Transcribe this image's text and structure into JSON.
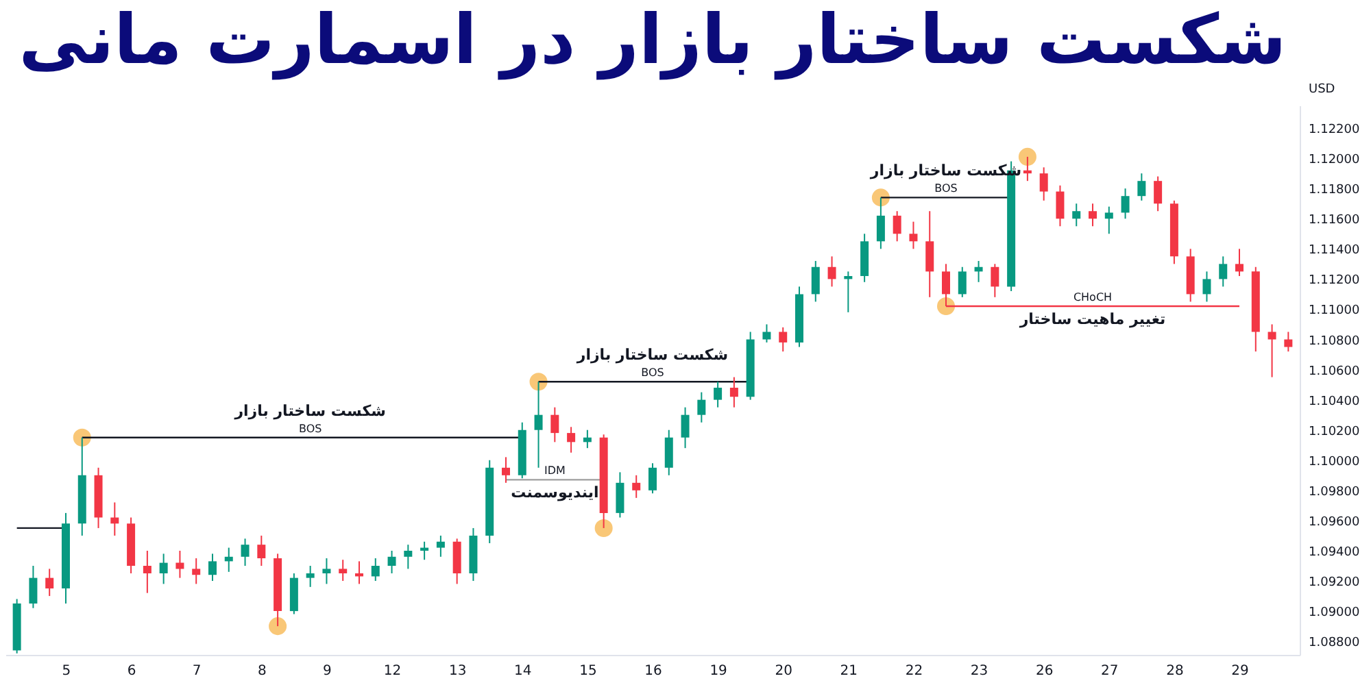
{
  "chart_data": {
    "type": "candlestick",
    "title": "شکست ساختار بازار در اسمارت مانی",
    "ylabel": "USD",
    "categories": [
      null,
      null,
      null,
      "5",
      null,
      null,
      null,
      "6",
      null,
      null,
      null,
      "7",
      null,
      null,
      null,
      "8",
      null,
      null,
      null,
      "9",
      null,
      null,
      null,
      "12",
      null,
      null,
      null,
      "13",
      null,
      null,
      null,
      "14",
      null,
      null,
      null,
      "15",
      null,
      null,
      null,
      "16",
      null,
      null,
      null,
      "19",
      null,
      null,
      null,
      "20",
      null,
      null,
      null,
      "21",
      null,
      null,
      null,
      "22",
      null,
      null,
      null,
      "23",
      null,
      null,
      null,
      "26",
      null,
      null,
      null,
      "27",
      null,
      null,
      null,
      "28",
      null,
      null,
      null,
      "29",
      null,
      null,
      null
    ],
    "ohlc": [
      [
        1.0874,
        1.0908,
        1.0872,
        1.0905
      ],
      [
        1.0905,
        1.093,
        1.0902,
        1.0922
      ],
      [
        1.0922,
        1.0928,
        1.091,
        1.0915
      ],
      [
        1.0915,
        1.0965,
        1.0905,
        1.0958
      ],
      [
        1.0958,
        1.1015,
        1.095,
        1.099
      ],
      [
        1.099,
        1.0995,
        1.0955,
        1.0962
      ],
      [
        1.0962,
        1.0972,
        1.095,
        1.0958
      ],
      [
        1.0958,
        1.0962,
        1.0925,
        1.093
      ],
      [
        1.093,
        1.094,
        1.0912,
        1.0925
      ],
      [
        1.0925,
        1.0938,
        1.0918,
        1.0932
      ],
      [
        1.0932,
        1.094,
        1.0922,
        1.0928
      ],
      [
        1.0928,
        1.0935,
        1.0918,
        1.0924
      ],
      [
        1.0924,
        1.0938,
        1.092,
        1.0933
      ],
      [
        1.0933,
        1.0942,
        1.0926,
        1.0936
      ],
      [
        1.0936,
        1.0948,
        1.093,
        1.0944
      ],
      [
        1.0944,
        1.095,
        1.093,
        1.0935
      ],
      [
        1.0935,
        1.0938,
        1.089,
        1.09
      ],
      [
        1.09,
        1.0925,
        1.0898,
        1.0922
      ],
      [
        1.0922,
        1.093,
        1.0916,
        1.0925
      ],
      [
        1.0925,
        1.0935,
        1.0918,
        1.0928
      ],
      [
        1.0928,
        1.0934,
        1.092,
        1.0925
      ],
      [
        1.0925,
        1.0933,
        1.0918,
        1.0923
      ],
      [
        1.0923,
        1.0935,
        1.092,
        1.093
      ],
      [
        1.093,
        1.094,
        1.0925,
        1.0936
      ],
      [
        1.0936,
        1.0944,
        1.0928,
        1.094
      ],
      [
        1.094,
        1.0946,
        1.0934,
        1.0942
      ],
      [
        1.0942,
        1.095,
        1.0936,
        1.0946
      ],
      [
        1.0946,
        1.0948,
        1.0918,
        1.0925
      ],
      [
        1.0925,
        1.0955,
        1.092,
        1.095
      ],
      [
        1.095,
        1.1,
        1.0945,
        1.0995
      ],
      [
        1.0995,
        1.1002,
        1.0985,
        1.099
      ],
      [
        1.099,
        1.1025,
        1.0988,
        1.102
      ],
      [
        1.102,
        1.1052,
        1.0995,
        1.103
      ],
      [
        1.103,
        1.1035,
        1.1012,
        1.1018
      ],
      [
        1.1018,
        1.1022,
        1.1005,
        1.1012
      ],
      [
        1.1012,
        1.102,
        1.1008,
        1.1015
      ],
      [
        1.1015,
        1.1017,
        1.0955,
        1.0965
      ],
      [
        1.0965,
        1.0992,
        1.0962,
        1.0985
      ],
      [
        1.0985,
        1.099,
        1.0975,
        1.098
      ],
      [
        1.098,
        1.0998,
        1.0978,
        1.0995
      ],
      [
        1.0995,
        1.102,
        1.099,
        1.1015
      ],
      [
        1.1015,
        1.1035,
        1.1008,
        1.103
      ],
      [
        1.103,
        1.1045,
        1.1025,
        1.104
      ],
      [
        1.104,
        1.1052,
        1.1035,
        1.1048
      ],
      [
        1.1048,
        1.1055,
        1.1035,
        1.1042
      ],
      [
        1.1042,
        1.1085,
        1.104,
        1.108
      ],
      [
        1.108,
        1.109,
        1.1078,
        1.1085
      ],
      [
        1.1085,
        1.1088,
        1.1072,
        1.1078
      ],
      [
        1.1078,
        1.1115,
        1.1075,
        1.111
      ],
      [
        1.111,
        1.1132,
        1.1105,
        1.1128
      ],
      [
        1.1128,
        1.1135,
        1.1115,
        1.112
      ],
      [
        1.112,
        1.1125,
        1.1098,
        1.1122
      ],
      [
        1.1122,
        1.115,
        1.1118,
        1.1145
      ],
      [
        1.1145,
        1.1174,
        1.114,
        1.1162
      ],
      [
        1.1162,
        1.1165,
        1.1145,
        1.115
      ],
      [
        1.115,
        1.1158,
        1.114,
        1.1145
      ],
      [
        1.1145,
        1.1165,
        1.1108,
        1.1125
      ],
      [
        1.1125,
        1.113,
        1.1102,
        1.111
      ],
      [
        1.111,
        1.1128,
        1.1108,
        1.1125
      ],
      [
        1.1125,
        1.1132,
        1.1118,
        1.1128
      ],
      [
        1.1128,
        1.113,
        1.1108,
        1.1115
      ],
      [
        1.1115,
        1.1198,
        1.1112,
        1.1192
      ],
      [
        1.1192,
        1.1201,
        1.1185,
        1.119
      ],
      [
        1.119,
        1.1194,
        1.1172,
        1.1178
      ],
      [
        1.1178,
        1.1182,
        1.1155,
        1.116
      ],
      [
        1.116,
        1.117,
        1.1155,
        1.1165
      ],
      [
        1.1165,
        1.117,
        1.1155,
        1.116
      ],
      [
        1.116,
        1.1168,
        1.115,
        1.1164
      ],
      [
        1.1164,
        1.118,
        1.116,
        1.1175
      ],
      [
        1.1175,
        1.119,
        1.1172,
        1.1185
      ],
      [
        1.1185,
        1.1188,
        1.1165,
        1.117
      ],
      [
        1.117,
        1.1172,
        1.113,
        1.1135
      ],
      [
        1.1135,
        1.114,
        1.1105,
        1.111
      ],
      [
        1.111,
        1.1125,
        1.1105,
        1.112
      ],
      [
        1.112,
        1.1135,
        1.1115,
        1.113
      ],
      [
        1.113,
        1.114,
        1.1122,
        1.1125
      ],
      [
        1.1125,
        1.1128,
        1.1072,
        1.1085
      ],
      [
        1.1085,
        1.109,
        1.1055,
        1.108
      ],
      [
        1.108,
        1.1085,
        1.1072,
        1.1075
      ]
    ],
    "colors": [
      "#089981",
      "#089981",
      "#f23645",
      "#089981",
      "#089981",
      "#f23645",
      "#f23645",
      "#f23645",
      "#f23645",
      "#089981",
      "#f23645",
      "#f23645",
      "#089981",
      "#089981",
      "#089981",
      "#f23645",
      "#f23645",
      "#089981",
      "#089981",
      "#089981",
      "#f23645",
      "#f23645",
      "#089981",
      "#089981",
      "#089981",
      "#089981",
      "#089981",
      "#f23645",
      "#089981",
      "#089981",
      "#f23645",
      "#089981",
      "#089981",
      "#f23645",
      "#f23645",
      "#089981",
      "#f23645",
      "#089981",
      "#f23645",
      "#089981",
      "#089981",
      "#089981",
      "#089981",
      "#089981",
      "#f23645",
      "#089981",
      "#089981",
      "#f23645",
      "#089981",
      "#089981",
      "#f23645",
      "#089981",
      "#089981",
      "#089981",
      "#f23645",
      "#f23645",
      "#f23645",
      "#f23645",
      "#089981",
      "#089981",
      "#f23645",
      "#089981",
      "#f23645",
      "#f23645",
      "#f23645",
      "#089981",
      "#f23645",
      "#089981",
      "#089981",
      "#089981",
      "#f23645",
      "#f23645",
      "#f23645",
      "#089981",
      "#089981",
      "#f23645",
      "#f23645",
      "#f23645",
      "#f23645"
    ],
    "series": [
      {
        "type": "line",
        "color": "#131722",
        "values": [
          1.0955,
          1.0955,
          1.0955,
          1.0955,
          null,
          null,
          null,
          null,
          null,
          null,
          null,
          null,
          null,
          null,
          null,
          null,
          null,
          null,
          null,
          null,
          null,
          null,
          null,
          null,
          null,
          null,
          null,
          null,
          null,
          null,
          null,
          null,
          null,
          null,
          null,
          null,
          null,
          null,
          null,
          null,
          null,
          null,
          null,
          null,
          null,
          null,
          null,
          null,
          null,
          null,
          null,
          null,
          null,
          null,
          null,
          null,
          null,
          null,
          null,
          null,
          null,
          null,
          null,
          null,
          null,
          null,
          null,
          null,
          null,
          null,
          null,
          null,
          null,
          null,
          null,
          null,
          null,
          null,
          null
        ]
      },
      {
        "type": "line",
        "name": "BOS",
        "color": "#131722",
        "values": [
          null,
          null,
          null,
          null,
          1.1015,
          1.1015,
          1.1015,
          1.1015,
          1.1015,
          1.1015,
          1.1015,
          1.1015,
          1.1015,
          1.1015,
          1.1015,
          1.1015,
          1.1015,
          1.1015,
          1.1015,
          1.1015,
          1.1015,
          1.1015,
          1.1015,
          1.1015,
          1.1015,
          1.1015,
          1.1015,
          1.1015,
          1.1015,
          1.1015,
          1.1015,
          1.1015,
          null,
          null,
          null,
          null,
          null,
          null,
          null,
          null,
          null,
          null,
          null,
          null,
          null,
          null,
          null,
          null,
          null,
          null,
          null,
          null,
          null,
          null,
          null,
          null,
          null,
          null,
          null,
          null,
          null,
          null,
          null,
          null,
          null,
          null,
          null,
          null,
          null,
          null,
          null,
          null,
          null,
          null,
          null,
          null,
          null,
          null,
          null
        ]
      },
      {
        "type": "line",
        "name": "IDM",
        "color": "#9e9e9e",
        "values": [
          null,
          null,
          null,
          null,
          null,
          null,
          null,
          null,
          null,
          null,
          null,
          null,
          null,
          null,
          null,
          null,
          null,
          null,
          null,
          null,
          null,
          null,
          null,
          null,
          null,
          null,
          null,
          null,
          null,
          null,
          1.0987,
          1.0987,
          1.0987,
          1.0987,
          1.0987,
          1.0987,
          1.0987,
          null,
          null,
          null,
          null,
          null,
          null,
          null,
          null,
          null,
          null,
          null,
          null,
          null,
          null,
          null,
          null,
          null,
          null,
          null,
          null,
          null,
          null,
          null,
          null,
          null,
          null,
          null,
          null,
          null,
          null,
          null,
          null,
          null,
          null,
          null,
          null,
          null,
          null,
          null,
          null,
          null,
          null
        ]
      },
      {
        "type": "line",
        "name": "BOS",
        "color": "#131722",
        "values": [
          null,
          null,
          null,
          null,
          null,
          null,
          null,
          null,
          null,
          null,
          null,
          null,
          null,
          null,
          null,
          null,
          null,
          null,
          null,
          null,
          null,
          null,
          null,
          null,
          null,
          null,
          null,
          null,
          null,
          null,
          null,
          null,
          1.1052,
          1.1052,
          1.1052,
          1.1052,
          1.1052,
          1.1052,
          1.1052,
          1.1052,
          1.1052,
          1.1052,
          1.1052,
          1.1052,
          1.1052,
          1.1052,
          null,
          null,
          null,
          null,
          null,
          null,
          null,
          null,
          null,
          null,
          null,
          null,
          null,
          null,
          null,
          null,
          null,
          null,
          null,
          null,
          null,
          null,
          null,
          null,
          null,
          null,
          null,
          null,
          null,
          null,
          null,
          null,
          null
        ]
      },
      {
        "type": "line",
        "name": "BOS",
        "color": "#131722",
        "values": [
          null,
          null,
          null,
          null,
          null,
          null,
          null,
          null,
          null,
          null,
          null,
          null,
          null,
          null,
          null,
          null,
          null,
          null,
          null,
          null,
          null,
          null,
          null,
          null,
          null,
          null,
          null,
          null,
          null,
          null,
          null,
          null,
          null,
          null,
          null,
          null,
          null,
          null,
          null,
          null,
          null,
          null,
          null,
          null,
          null,
          null,
          null,
          null,
          null,
          null,
          null,
          null,
          null,
          1.1174,
          1.1174,
          1.1174,
          1.1174,
          1.1174,
          1.1174,
          1.1174,
          1.1174,
          1.1174,
          null,
          null,
          null,
          null,
          null,
          null,
          null,
          null,
          null,
          null,
          null,
          null,
          null,
          null,
          null,
          null,
          null
        ]
      },
      {
        "type": "line",
        "name": "CHoCH",
        "color": "#f23645",
        "values": [
          null,
          null,
          null,
          null,
          null,
          null,
          null,
          null,
          null,
          null,
          null,
          null,
          null,
          null,
          null,
          null,
          null,
          null,
          null,
          null,
          null,
          null,
          null,
          null,
          null,
          null,
          null,
          null,
          null,
          null,
          null,
          null,
          null,
          null,
          null,
          null,
          null,
          null,
          null,
          null,
          null,
          null,
          null,
          null,
          null,
          null,
          null,
          null,
          null,
          null,
          null,
          null,
          null,
          null,
          null,
          null,
          null,
          1.1102,
          1.1102,
          1.1102,
          1.1102,
          1.1102,
          1.1102,
          1.1102,
          1.1102,
          1.1102,
          1.1102,
          1.1102,
          1.1102,
          1.1102,
          1.1102,
          1.1102,
          1.1102,
          1.1102,
          1.1102,
          1.1102,
          null,
          null,
          null
        ]
      },
      {
        "type": "scatter",
        "marker": "circle",
        "color": "#f7b955",
        "values": [
          null,
          null,
          null,
          null,
          1.1015,
          null,
          null,
          null,
          null,
          null,
          null,
          null,
          null,
          null,
          null,
          null,
          1.089,
          null,
          null,
          null,
          null,
          null,
          null,
          null,
          null,
          null,
          null,
          null,
          null,
          null,
          null,
          null,
          1.1052,
          null,
          null,
          null,
          1.0955,
          null,
          null,
          null,
          null,
          null,
          null,
          null,
          null,
          null,
          null,
          null,
          null,
          null,
          null,
          null,
          null,
          1.1174,
          null,
          null,
          null,
          1.1102,
          null,
          null,
          null,
          null,
          1.1201,
          null,
          null,
          null,
          null,
          null,
          null,
          null,
          null,
          null,
          null,
          null,
          null,
          null,
          null,
          null,
          null
        ]
      }
    ],
    "annotations": [
      "شکست ساختار بازار",
      "ایندیوسمنت",
      "شکست ساختار بازار",
      "شکست ساختار بازار",
      "تغییر ماهیت ساختار"
    ],
    "ylim": [
      1.0871,
      1.1235
    ],
    "yticks": [
      {
        "value": 1.088,
        "label": "1.08800"
      },
      {
        "value": 1.09,
        "label": "1.09000"
      },
      {
        "value": 1.092,
        "label": "1.09200"
      },
      {
        "value": 1.094,
        "label": "1.09400"
      },
      {
        "value": 1.096,
        "label": "1.09600"
      },
      {
        "value": 1.098,
        "label": "1.09800"
      },
      {
        "value": 1.1,
        "label": "1.10000"
      },
      {
        "value": 1.102,
        "label": "1.10200"
      },
      {
        "value": 1.104,
        "label": "1.10400"
      },
      {
        "value": 1.106,
        "label": "1.10600"
      },
      {
        "value": 1.108,
        "label": "1.10800"
      },
      {
        "value": 1.11,
        "label": "1.11000"
      },
      {
        "value": 1.112,
        "label": "1.11200"
      },
      {
        "value": 1.114,
        "label": "1.11400"
      },
      {
        "value": 1.116,
        "label": "1.11600"
      },
      {
        "value": 1.118,
        "label": "1.11800"
      },
      {
        "value": 1.12,
        "label": "1.12000"
      },
      {
        "value": 1.122,
        "label": "1.12200"
      }
    ]
  }
}
